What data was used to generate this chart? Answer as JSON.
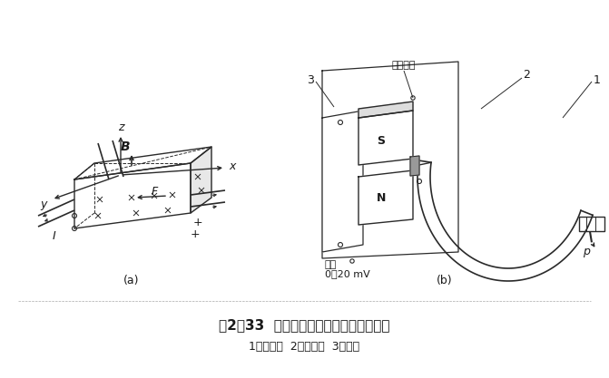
{
  "title": "图2－33  霆耳片式压力变送器结构原理图",
  "subtitle": "1．弹簧管  2．霆耳片  3．磁钐",
  "label_a": "(a)",
  "label_b": "(b)",
  "dc_power": "直流电源",
  "output": "输出",
  "output_range": "0～20 mV",
  "bg_color": "#ffffff",
  "line_color": "#2a2a2a",
  "text_color": "#1a1a1a"
}
